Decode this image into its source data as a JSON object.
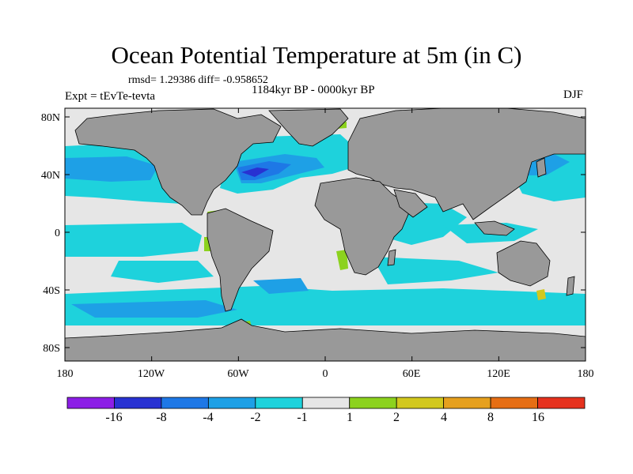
{
  "figure": {
    "title": "Ocean Potential Temperature at 5m (in C)",
    "stats": "rmsd= 1.29386 diff= -0.958652",
    "period": "1184kyr BP - 0000kyr BP",
    "experiment": "Expt = tEvTe-tevta",
    "season": "DJF"
  },
  "axes": {
    "lat_labels": [
      "80N",
      "40N",
      "0",
      "40S",
      "80S"
    ],
    "lon_labels": [
      "180",
      "120W",
      "60W",
      "0",
      "60E",
      "120E",
      "180"
    ]
  },
  "colorbar": {
    "colors": [
      "#8c1ee6",
      "#2832d2",
      "#1e78e6",
      "#1ea0e6",
      "#1ed2dc",
      "#e6e6e6",
      "#8cd21e",
      "#d2c81e",
      "#e6a01e",
      "#e66e14",
      "#e6321e"
    ],
    "labels": [
      "-16",
      "-8",
      "-4",
      "-2",
      "-1",
      "1",
      "2",
      "4",
      "8",
      "16"
    ]
  },
  "map_colors": {
    "land": "#999999",
    "ocean_neutral": "#e6e6e6",
    "cool_light": "#1ed2dc",
    "cool_mid": "#1ea0e6",
    "cool_strong": "#1e78e6",
    "cool_deep": "#2832d2",
    "warm_light": "#8cd21e",
    "warm_mid": "#d2c81e"
  }
}
